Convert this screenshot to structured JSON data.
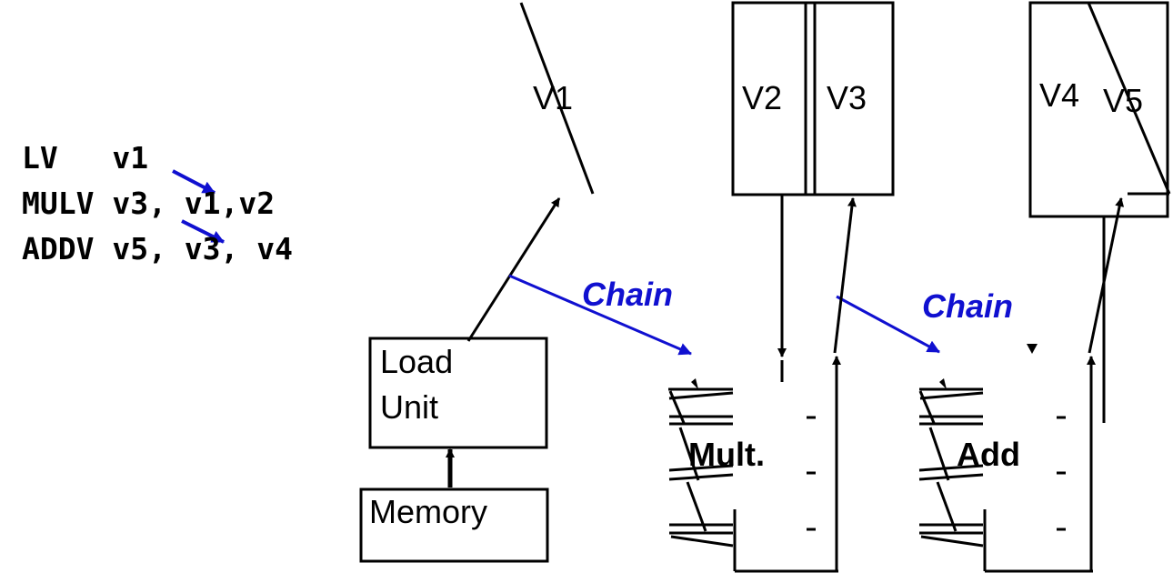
{
  "code": {
    "line1": "LV   v1",
    "line2": "MULV v3, v1,v2",
    "line3": "ADDV v5, v3, v4"
  },
  "registers": {
    "v1": "V1",
    "v2": "V2",
    "v3": "V3",
    "v4": "V4",
    "v5": "V5"
  },
  "units": {
    "load_line1": "Load",
    "load_line2": "Unit",
    "memory": "Memory",
    "mult": "Mult.",
    "add": "Add"
  },
  "chain_labels": {
    "first": "Chain",
    "second": "Chain"
  },
  "colors": {
    "chain": "#1010d0",
    "lines": "#000000"
  }
}
